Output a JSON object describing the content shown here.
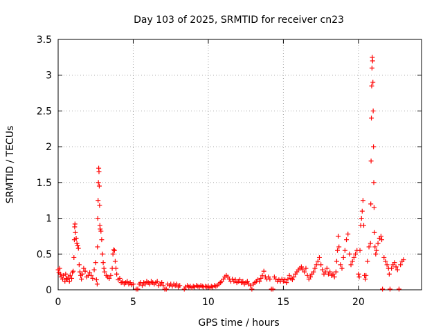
{
  "chart_data": {
    "type": "scatter",
    "title": "Day 103 of 2025, SRMTID for receiver cn23",
    "xlabel": "GPS time / hours",
    "ylabel": "SRMTID / TECUs",
    "xlim": [
      0,
      24.2
    ],
    "ylim": [
      0,
      3.5
    ],
    "xticks": [
      0,
      5,
      10,
      15,
      20
    ],
    "xtick_labels": [
      "0",
      "5",
      "10",
      "15",
      "20"
    ],
    "yticks": [
      0,
      0.5,
      1,
      1.5,
      2,
      2.5,
      3,
      3.5
    ],
    "ytick_labels": [
      "0",
      "0.5",
      "1",
      "1.5",
      "2",
      "2.5",
      "3",
      "3.5"
    ],
    "grid": true,
    "marker": "+",
    "series": [
      {
        "name": "SRMTID",
        "color": "#ff0000",
        "points": [
          [
            0.0,
            0.28
          ],
          [
            0.05,
            0.24
          ],
          [
            0.1,
            0.3
          ],
          [
            0.15,
            0.22
          ],
          [
            0.2,
            0.18
          ],
          [
            0.3,
            0.15
          ],
          [
            0.35,
            0.2
          ],
          [
            0.45,
            0.12
          ],
          [
            0.5,
            0.22
          ],
          [
            0.55,
            0.16
          ],
          [
            0.6,
            0.14
          ],
          [
            0.7,
            0.18
          ],
          [
            0.75,
            0.12
          ],
          [
            0.8,
            0.2
          ],
          [
            0.9,
            0.16
          ],
          [
            0.95,
            0.24
          ],
          [
            1.0,
            0.26
          ],
          [
            1.05,
            0.45
          ],
          [
            1.08,
            0.7
          ],
          [
            1.1,
            0.88
          ],
          [
            1.12,
            0.92
          ],
          [
            1.15,
            0.8
          ],
          [
            1.2,
            0.72
          ],
          [
            1.25,
            0.65
          ],
          [
            1.3,
            0.62
          ],
          [
            1.35,
            0.58
          ],
          [
            1.4,
            0.35
          ],
          [
            1.45,
            0.25
          ],
          [
            1.5,
            0.2
          ],
          [
            1.55,
            0.15
          ],
          [
            1.6,
            0.22
          ],
          [
            1.7,
            0.3
          ],
          [
            1.8,
            0.26
          ],
          [
            1.9,
            0.18
          ],
          [
            2.0,
            0.2
          ],
          [
            2.1,
            0.24
          ],
          [
            2.2,
            0.2
          ],
          [
            2.3,
            0.16
          ],
          [
            2.4,
            0.28
          ],
          [
            2.5,
            0.38
          ],
          [
            2.55,
            0.14
          ],
          [
            2.6,
            0.08
          ],
          [
            2.62,
            0.6
          ],
          [
            2.64,
            1.0
          ],
          [
            2.66,
            1.25
          ],
          [
            2.68,
            1.5
          ],
          [
            2.7,
            1.7
          ],
          [
            2.72,
            1.65
          ],
          [
            2.74,
            1.45
          ],
          [
            2.76,
            1.18
          ],
          [
            2.78,
            0.9
          ],
          [
            2.8,
            0.85
          ],
          [
            2.85,
            0.82
          ],
          [
            2.9,
            0.7
          ],
          [
            2.95,
            0.5
          ],
          [
            3.0,
            0.38
          ],
          [
            3.05,
            0.3
          ],
          [
            3.1,
            0.25
          ],
          [
            3.2,
            0.2
          ],
          [
            3.3,
            0.18
          ],
          [
            3.4,
            0.16
          ],
          [
            3.5,
            0.2
          ],
          [
            3.6,
            0.3
          ],
          [
            3.65,
            0.5
          ],
          [
            3.7,
            0.56
          ],
          [
            3.75,
            0.55
          ],
          [
            3.8,
            0.4
          ],
          [
            3.85,
            0.3
          ],
          [
            3.9,
            0.22
          ],
          [
            4.0,
            0.14
          ],
          [
            4.1,
            0.16
          ],
          [
            4.2,
            0.1
          ],
          [
            4.3,
            0.12
          ],
          [
            4.4,
            0.08
          ],
          [
            4.5,
            0.1
          ],
          [
            4.6,
            0.12
          ],
          [
            4.7,
            0.08
          ],
          [
            4.8,
            0.1
          ],
          [
            4.9,
            0.07
          ],
          [
            5.0,
            0.08
          ],
          [
            5.2,
            0.01
          ],
          [
            5.3,
            0.01
          ],
          [
            5.4,
            0.08
          ],
          [
            5.5,
            0.1
          ],
          [
            5.6,
            0.06
          ],
          [
            5.7,
            0.1
          ],
          [
            5.8,
            0.08
          ],
          [
            5.9,
            0.12
          ],
          [
            6.0,
            0.1
          ],
          [
            6.1,
            0.08
          ],
          [
            6.2,
            0.12
          ],
          [
            6.3,
            0.1
          ],
          [
            6.4,
            0.08
          ],
          [
            6.5,
            0.1
          ],
          [
            6.6,
            0.12
          ],
          [
            6.7,
            0.06
          ],
          [
            6.8,
            0.08
          ],
          [
            6.9,
            0.1
          ],
          [
            7.0,
            0.06
          ],
          [
            7.1,
            0.01
          ],
          [
            7.2,
            0.01
          ],
          [
            7.3,
            0.08
          ],
          [
            7.4,
            0.06
          ],
          [
            7.5,
            0.08
          ],
          [
            7.6,
            0.05
          ],
          [
            7.7,
            0.08
          ],
          [
            7.8,
            0.06
          ],
          [
            7.9,
            0.08
          ],
          [
            8.0,
            0.04
          ],
          [
            8.1,
            0.06
          ],
          [
            8.4,
            0.01
          ],
          [
            8.5,
            0.04
          ],
          [
            8.6,
            0.06
          ],
          [
            8.7,
            0.04
          ],
          [
            8.8,
            0.05
          ],
          [
            8.9,
            0.03
          ],
          [
            9.0,
            0.05
          ],
          [
            9.1,
            0.04
          ],
          [
            9.2,
            0.06
          ],
          [
            9.3,
            0.05
          ],
          [
            9.4,
            0.04
          ],
          [
            9.5,
            0.06
          ],
          [
            9.6,
            0.05
          ],
          [
            9.7,
            0.04
          ],
          [
            9.8,
            0.05
          ],
          [
            9.9,
            0.04
          ],
          [
            10.0,
            0.05
          ],
          [
            10.1,
            0.03
          ],
          [
            10.2,
            0.05
          ],
          [
            10.3,
            0.04
          ],
          [
            10.4,
            0.06
          ],
          [
            10.5,
            0.05
          ],
          [
            10.6,
            0.06
          ],
          [
            10.7,
            0.08
          ],
          [
            10.8,
            0.1
          ],
          [
            10.9,
            0.12
          ],
          [
            11.0,
            0.15
          ],
          [
            11.1,
            0.18
          ],
          [
            11.2,
            0.2
          ],
          [
            11.3,
            0.18
          ],
          [
            11.4,
            0.15
          ],
          [
            11.5,
            0.12
          ],
          [
            11.6,
            0.15
          ],
          [
            11.7,
            0.12
          ],
          [
            11.8,
            0.14
          ],
          [
            11.9,
            0.1
          ],
          [
            12.0,
            0.12
          ],
          [
            12.1,
            0.14
          ],
          [
            12.2,
            0.1
          ],
          [
            12.3,
            0.12
          ],
          [
            12.4,
            0.08
          ],
          [
            12.5,
            0.1
          ],
          [
            12.6,
            0.12
          ],
          [
            12.7,
            0.08
          ],
          [
            12.8,
            0.06
          ],
          [
            12.9,
            0.01
          ],
          [
            13.0,
            0.08
          ],
          [
            13.1,
            0.1
          ],
          [
            13.2,
            0.12
          ],
          [
            13.3,
            0.14
          ],
          [
            13.4,
            0.12
          ],
          [
            13.5,
            0.16
          ],
          [
            13.6,
            0.2
          ],
          [
            13.7,
            0.26
          ],
          [
            13.8,
            0.18
          ],
          [
            13.9,
            0.15
          ],
          [
            14.0,
            0.18
          ],
          [
            14.1,
            0.15
          ],
          [
            14.2,
            0.01
          ],
          [
            14.3,
            0.01
          ],
          [
            14.4,
            0.18
          ],
          [
            14.5,
            0.15
          ],
          [
            14.6,
            0.12
          ],
          [
            14.7,
            0.14
          ],
          [
            14.8,
            0.12
          ],
          [
            14.9,
            0.15
          ],
          [
            15.0,
            0.12
          ],
          [
            15.1,
            0.14
          ],
          [
            15.2,
            0.1
          ],
          [
            15.3,
            0.15
          ],
          [
            15.4,
            0.2
          ],
          [
            15.5,
            0.16
          ],
          [
            15.6,
            0.14
          ],
          [
            15.7,
            0.18
          ],
          [
            15.8,
            0.22
          ],
          [
            15.9,
            0.25
          ],
          [
            16.0,
            0.28
          ],
          [
            16.1,
            0.3
          ],
          [
            16.2,
            0.32
          ],
          [
            16.3,
            0.28
          ],
          [
            16.4,
            0.25
          ],
          [
            16.5,
            0.3
          ],
          [
            16.6,
            0.2
          ],
          [
            16.7,
            0.15
          ],
          [
            16.8,
            0.18
          ],
          [
            16.9,
            0.22
          ],
          [
            17.0,
            0.25
          ],
          [
            17.1,
            0.3
          ],
          [
            17.2,
            0.35
          ],
          [
            17.3,
            0.4
          ],
          [
            17.4,
            0.45
          ],
          [
            17.5,
            0.35
          ],
          [
            17.6,
            0.28
          ],
          [
            17.7,
            0.22
          ],
          [
            17.8,
            0.25
          ],
          [
            17.9,
            0.3
          ],
          [
            18.0,
            0.22
          ],
          [
            18.1,
            0.25
          ],
          [
            18.2,
            0.2
          ],
          [
            18.3,
            0.22
          ],
          [
            18.4,
            0.18
          ],
          [
            18.5,
            0.25
          ],
          [
            18.55,
            0.4
          ],
          [
            18.6,
            0.55
          ],
          [
            18.65,
            0.75
          ],
          [
            18.7,
            0.6
          ],
          [
            18.8,
            0.35
          ],
          [
            18.9,
            0.3
          ],
          [
            19.0,
            0.45
          ],
          [
            19.1,
            0.55
          ],
          [
            19.2,
            0.7
          ],
          [
            19.3,
            0.78
          ],
          [
            19.4,
            0.5
          ],
          [
            19.5,
            0.35
          ],
          [
            19.6,
            0.4
          ],
          [
            19.7,
            0.45
          ],
          [
            19.8,
            0.5
          ],
          [
            19.9,
            0.55
          ],
          [
            20.0,
            0.22
          ],
          [
            20.05,
            0.18
          ],
          [
            20.1,
            0.55
          ],
          [
            20.15,
            0.9
          ],
          [
            20.2,
            1.0
          ],
          [
            20.25,
            1.1
          ],
          [
            20.3,
            1.25
          ],
          [
            20.35,
            0.9
          ],
          [
            20.4,
            0.2
          ],
          [
            20.45,
            0.15
          ],
          [
            20.5,
            0.2
          ],
          [
            20.6,
            0.4
          ],
          [
            20.7,
            0.6
          ],
          [
            20.8,
            0.65
          ],
          [
            20.82,
            1.2
          ],
          [
            20.84,
            1.8
          ],
          [
            20.86,
            2.4
          ],
          [
            20.88,
            2.85
          ],
          [
            20.9,
            3.1
          ],
          [
            20.92,
            3.25
          ],
          [
            20.94,
            3.2
          ],
          [
            20.96,
            2.9
          ],
          [
            20.98,
            2.5
          ],
          [
            21.0,
            2.0
          ],
          [
            21.02,
            1.5
          ],
          [
            21.04,
            1.15
          ],
          [
            21.06,
            0.8
          ],
          [
            21.1,
            0.6
          ],
          [
            21.15,
            0.5
          ],
          [
            21.2,
            0.55
          ],
          [
            21.3,
            0.65
          ],
          [
            21.4,
            0.72
          ],
          [
            21.5,
            0.75
          ],
          [
            21.55,
            0.7
          ],
          [
            21.6,
            0.01
          ],
          [
            21.7,
            0.45
          ],
          [
            21.8,
            0.4
          ],
          [
            21.9,
            0.35
          ],
          [
            22.0,
            0.3
          ],
          [
            22.05,
            0.22
          ],
          [
            22.1,
            0.01
          ],
          [
            22.2,
            0.3
          ],
          [
            22.3,
            0.35
          ],
          [
            22.4,
            0.38
          ],
          [
            22.5,
            0.32
          ],
          [
            22.6,
            0.28
          ],
          [
            22.7,
            0.01
          ],
          [
            22.8,
            0.35
          ],
          [
            22.9,
            0.4
          ],
          [
            23.0,
            0.42
          ]
        ]
      }
    ]
  }
}
